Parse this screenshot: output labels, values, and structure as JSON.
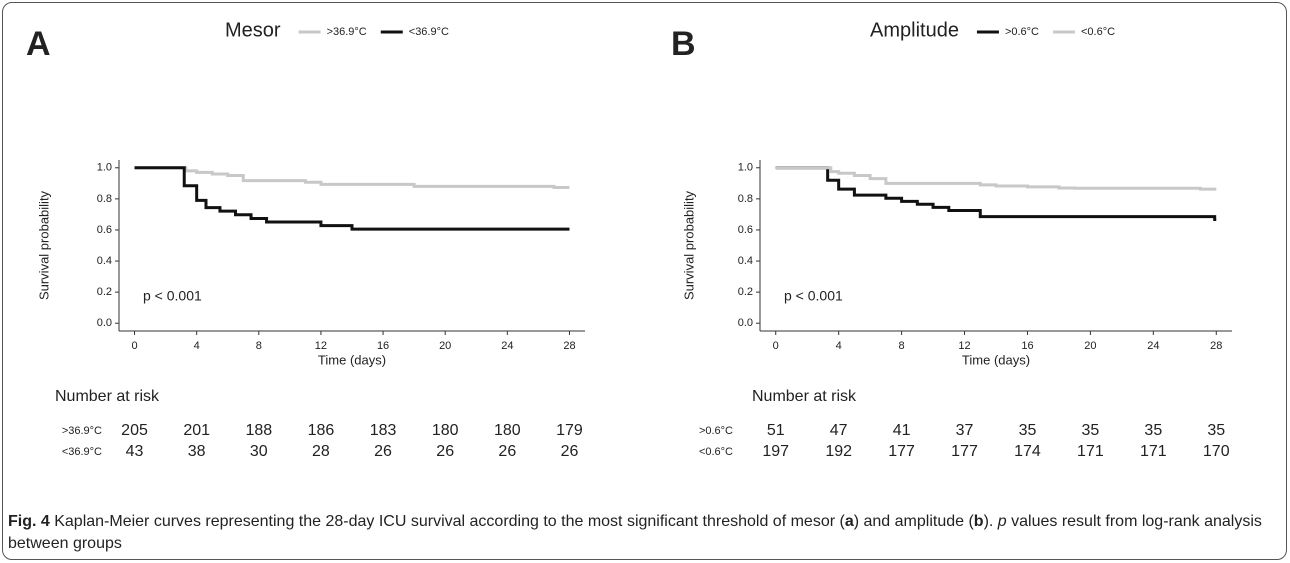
{
  "chart_data": [
    {
      "type": "step",
      "panel": "A",
      "title": "Mesor",
      "xlabel": "Time (days)",
      "ylabel": "Survival probability",
      "annotation": "p < 0.001",
      "xlim": [
        -1,
        29
      ],
      "xticks": [
        0,
        4,
        8,
        12,
        16,
        20,
        24,
        28
      ],
      "ylim": [
        -0.05,
        1.05
      ],
      "yticks": [
        {
          "value": 0,
          "label": "0.0"
        },
        0.2,
        0.4,
        0.6,
        0.8,
        {
          "value": 1,
          "label": "1.0"
        }
      ],
      "series": [
        {
          "name": ">36.9°C",
          "color": "#c8c8c8",
          "x": [
            0,
            3.3,
            4,
            5,
            6,
            7,
            11,
            12,
            18,
            27,
            28
          ],
          "values": [
            1,
            0.98,
            0.97,
            0.96,
            0.95,
            0.917,
            0.907,
            0.893,
            0.88,
            0.873,
            0.873
          ]
        },
        {
          "name": "<36.9°C",
          "color": "#111111",
          "x": [
            0,
            3.2,
            4,
            4.6,
            5.5,
            6.5,
            7.5,
            8.5,
            12,
            14,
            28
          ],
          "values": [
            1,
            0.884,
            0.79,
            0.744,
            0.721,
            0.698,
            0.674,
            0.651,
            0.628,
            0.605,
            0.605
          ]
        }
      ],
      "risk_table": {
        "title": "Number at risk",
        "rows": [
          {
            "name": ">36.9°C",
            "color": "#c8c8c8",
            "values": [
              205,
              201,
              188,
              186,
              183,
              180,
              180,
              179
            ]
          },
          {
            "name": "<36.9°C",
            "color": "#111111",
            "values": [
              43,
              38,
              30,
              28,
              26,
              26,
              26,
              26
            ]
          }
        ]
      }
    },
    {
      "type": "step",
      "panel": "B",
      "title": "Amplitude",
      "xlabel": "Time (days)",
      "ylabel": "Survival probability",
      "annotation": "p < 0.001",
      "xlim": [
        -1,
        29
      ],
      "xticks": [
        0,
        4,
        8,
        12,
        16,
        20,
        24,
        28
      ],
      "ylim": [
        -0.05,
        1.05
      ],
      "yticks": [
        {
          "value": 0,
          "label": "0.0"
        },
        0.2,
        0.4,
        0.6,
        0.8,
        {
          "value": 1,
          "label": "1.0"
        }
      ],
      "series": [
        {
          "name": ">0.6°C",
          "color": "#111111",
          "x": [
            0,
            3.3,
            4,
            5,
            7,
            8,
            9,
            10,
            11,
            13,
            27.9,
            28
          ],
          "values": [
            1,
            0.92,
            0.863,
            0.824,
            0.804,
            0.784,
            0.765,
            0.745,
            0.725,
            0.686,
            0.667,
            0.667
          ]
        },
        {
          "name": "<0.6°C",
          "color": "#c8c8c8",
          "x": [
            0,
            3.5,
            4,
            5,
            6,
            7,
            13,
            14,
            16,
            18,
            19,
            27,
            28
          ],
          "values": [
            1,
            0.975,
            0.965,
            0.95,
            0.93,
            0.9,
            0.89,
            0.883,
            0.877,
            0.87,
            0.868,
            0.863,
            0.863
          ]
        }
      ],
      "risk_table": {
        "title": "Number at risk",
        "rows": [
          {
            "name": ">0.6°C",
            "color": "#111111",
            "values": [
              51,
              47,
              41,
              37,
              35,
              35,
              35,
              35
            ]
          },
          {
            "name": "<0.6°C",
            "color": "#c8c8c8",
            "values": [
              197,
              192,
              177,
              177,
              174,
              171,
              171,
              170
            ]
          }
        ]
      }
    }
  ],
  "caption": {
    "label": "Fig. 4",
    "parts": [
      " Kaplan-Meier curves representing the 28-day ICU survival according to the most significant threshold of mesor (",
      "a",
      ") and amplitude (",
      "b",
      "). ",
      "p",
      " values result from log-rank analysis between groups"
    ]
  }
}
